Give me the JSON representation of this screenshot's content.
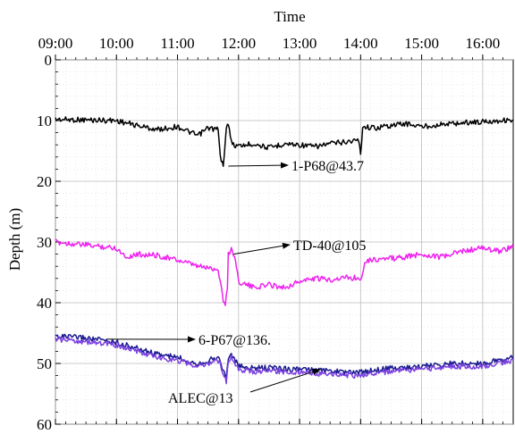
{
  "chart_data": {
    "type": "line",
    "title": "Time",
    "xlabel": "",
    "ylabel": "Depth (m)",
    "x_unit": "time of day (HH:MM)",
    "xlim": [
      "09:00",
      "16:30"
    ],
    "ylim": [
      0,
      60
    ],
    "y_inverted": true,
    "x_ticks": [
      "09:00",
      "10:00",
      "11:00",
      "12:00",
      "13:00",
      "14:00",
      "15:00",
      "16:00"
    ],
    "y_ticks": [
      0,
      10,
      20,
      30,
      40,
      50,
      60
    ],
    "grid": true,
    "series": [
      {
        "name": "1-P68@43.7",
        "color": "#000000",
        "x": [
          "09:00",
          "09:30",
          "10:00",
          "10:20",
          "10:40",
          "11:00",
          "11:20",
          "11:30",
          "11:40",
          "11:42",
          "11:45",
          "11:47",
          "11:49",
          "11:50",
          "11:52",
          "11:55",
          "12:00",
          "12:15",
          "12:30",
          "12:45",
          "13:00",
          "13:15",
          "13:30",
          "13:45",
          "13:58",
          "14:00",
          "14:02",
          "14:15",
          "14:30",
          "14:45",
          "15:00",
          "15:15",
          "15:30",
          "15:45",
          "16:00",
          "16:15",
          "16:30"
        ],
        "y": [
          9.8,
          9.9,
          10.0,
          10.8,
          11.5,
          11.0,
          12.5,
          11.2,
          11.5,
          16.0,
          17.5,
          13.0,
          10.2,
          10.5,
          13.0,
          14.0,
          14.2,
          13.8,
          14.5,
          13.8,
          14.0,
          14.3,
          13.8,
          13.5,
          13.2,
          15.5,
          11.0,
          11.2,
          10.8,
          10.5,
          11.0,
          10.7,
          10.5,
          10.3,
          10.2,
          10.0,
          9.9
        ]
      },
      {
        "name": "TD-40@105",
        "color": "#ee22ee",
        "x": [
          "09:00",
          "09:30",
          "10:00",
          "10:10",
          "10:20",
          "10:40",
          "11:00",
          "11:20",
          "11:40",
          "11:45",
          "11:47",
          "11:49",
          "11:50",
          "11:53",
          "11:57",
          "12:00",
          "12:15",
          "12:30",
          "12:45",
          "13:00",
          "13:15",
          "13:30",
          "13:45",
          "14:00",
          "14:05",
          "14:20",
          "14:40",
          "15:00",
          "15:20",
          "15:40",
          "16:00",
          "16:15",
          "16:30"
        ],
        "y": [
          30.0,
          30.5,
          31.0,
          32.5,
          32.0,
          32.2,
          33.0,
          34.0,
          34.5,
          39.5,
          40.5,
          37.5,
          32.0,
          31.0,
          33.0,
          36.5,
          37.5,
          37.0,
          37.5,
          36.5,
          36.0,
          36.2,
          35.8,
          36.0,
          33.0,
          32.8,
          32.6,
          32.0,
          32.5,
          31.5,
          31.0,
          31.5,
          30.8
        ]
      },
      {
        "name": "6-P67@136.",
        "color": "#1a1a8e",
        "x": [
          "09:00",
          "09:30",
          "10:00",
          "10:20",
          "10:40",
          "11:00",
          "11:20",
          "11:40",
          "11:45",
          "11:48",
          "11:50",
          "11:53",
          "11:57",
          "12:00",
          "12:15",
          "12:30",
          "13:00",
          "13:30",
          "14:00",
          "14:15",
          "14:30",
          "15:00",
          "15:15",
          "15:30",
          "16:00",
          "16:15",
          "16:30"
        ],
        "y": [
          45.5,
          45.8,
          46.5,
          47.5,
          48.5,
          49.0,
          50.0,
          49.0,
          51.0,
          52.5,
          49.0,
          48.5,
          49.5,
          50.5,
          50.8,
          50.7,
          51.0,
          51.3,
          51.5,
          51.0,
          50.8,
          50.5,
          50.2,
          50.0,
          50.0,
          49.5,
          49.0
        ]
      },
      {
        "name": "ALEC@13",
        "color": "#7a3fe0",
        "x": [
          "09:00",
          "09:30",
          "10:00",
          "10:20",
          "10:40",
          "11:00",
          "11:20",
          "11:40",
          "11:45",
          "11:48",
          "11:50",
          "11:53",
          "11:57",
          "12:00",
          "12:15",
          "12:30",
          "13:00",
          "13:30",
          "14:00",
          "14:15",
          "14:30",
          "15:00",
          "15:15",
          "15:30",
          "16:00",
          "16:15",
          "16:30"
        ],
        "y": [
          46.0,
          46.4,
          47.0,
          48.0,
          49.0,
          49.5,
          50.5,
          49.5,
          51.5,
          53.0,
          49.5,
          49.0,
          50.0,
          51.0,
          51.3,
          51.2,
          51.5,
          51.8,
          52.0,
          51.5,
          51.3,
          51.0,
          50.7,
          50.5,
          50.5,
          50.0,
          49.5
        ]
      }
    ],
    "annotations": [
      {
        "text": "1-P68@43.7",
        "series": 0,
        "point_time": "11:50",
        "point_depth": 17.5
      },
      {
        "text": "TD-40@105",
        "series": 1,
        "point_time": "11:55",
        "point_depth": 32.0
      },
      {
        "text": "6-P67@136.",
        "series": 2,
        "point_time": "09:50",
        "point_depth": 46.0
      },
      {
        "text": "ALEC@13",
        "series": 3,
        "point_time": "13:20",
        "point_depth": 51.0
      }
    ]
  }
}
